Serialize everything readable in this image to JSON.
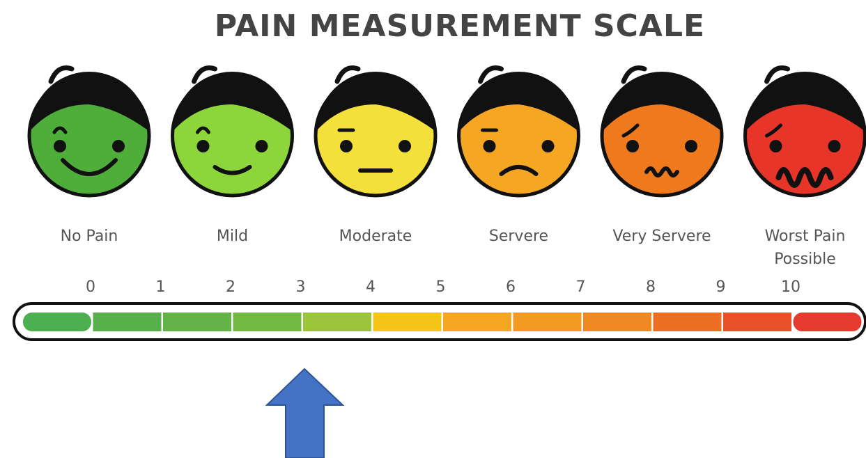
{
  "title": "PAIN MEASUREMENT SCALE",
  "faces": [
    [
      "No Pain"
    ],
    [
      "Mild"
    ],
    [
      "Moderate"
    ],
    [
      "Servere"
    ],
    [
      "Very Servere"
    ],
    [
      "Worst Pain",
      "Possible"
    ]
  ],
  "scale": [
    0,
    1,
    2,
    3,
    4,
    5,
    6,
    7,
    8,
    9,
    10
  ]
}
